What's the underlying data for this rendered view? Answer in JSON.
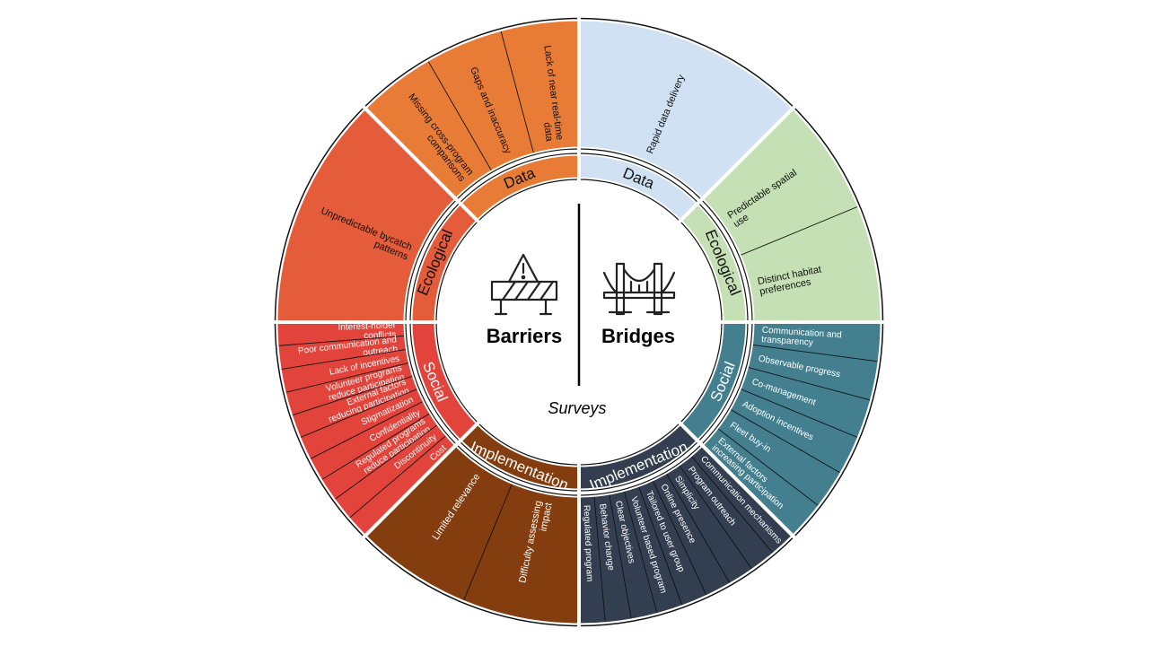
{
  "center": {
    "left_title": "Barriers",
    "right_title": "Bridges",
    "subtitle": "Surveys",
    "left_icon": "barrier-warning-icon",
    "right_icon": "bridge-icon"
  },
  "colors": {
    "barriers_data": "#e87c36",
    "barriers_ecological": "#e55c3b",
    "barriers_social": "#e2433b",
    "barriers_implementation": "#843d0e",
    "bridges_data": "#cfe1f2",
    "bridges_ecological": "#c5e0b4",
    "bridges_social": "#437f8e",
    "bridges_implementation": "#333f50"
  },
  "barriers": {
    "data": {
      "label": "Data",
      "items": [
        "Missing cross-program comparisons",
        "Gaps and inaccuracy",
        "Lack of near real-time data"
      ]
    },
    "ecological": {
      "label": "Ecological",
      "items": [
        "Unpredictable bycatch patterns"
      ]
    },
    "social": {
      "label": "Social",
      "items": [
        "Interest-holder conflicts",
        "Poor communication and outreach",
        "Lack of incentives",
        "Volunteer programs reduce participation",
        "External factors reducing participation",
        "Stigmatization",
        "Confidentiality",
        "Regulated programs reduce participation",
        "Discontinuity",
        "Cost"
      ]
    },
    "implementation": {
      "label": "Implementation",
      "items": [
        "Difficulty assessing impact",
        "Limited relevance"
      ]
    }
  },
  "bridges": {
    "data": {
      "label": "Data",
      "items": [
        "Rapid data delivery"
      ]
    },
    "ecological": {
      "label": "Ecological",
      "items": [
        "Predictable spatial use",
        "Distinct habitat preferences"
      ]
    },
    "social": {
      "label": "Social",
      "items": [
        "Communication and transparency",
        "Observable progress",
        "Co-management",
        "Adoption incentives",
        "Fleet buy-in",
        "External factors increasing participation"
      ]
    },
    "implementation": {
      "label": "Implementation",
      "items": [
        "Regulated program",
        "Behavior change",
        "Clear objectives",
        "Volunteer based program",
        "Tailored to user group",
        "Online presence",
        "Simplicity",
        "Program outreach",
        "Communication mechanisms"
      ]
    }
  }
}
